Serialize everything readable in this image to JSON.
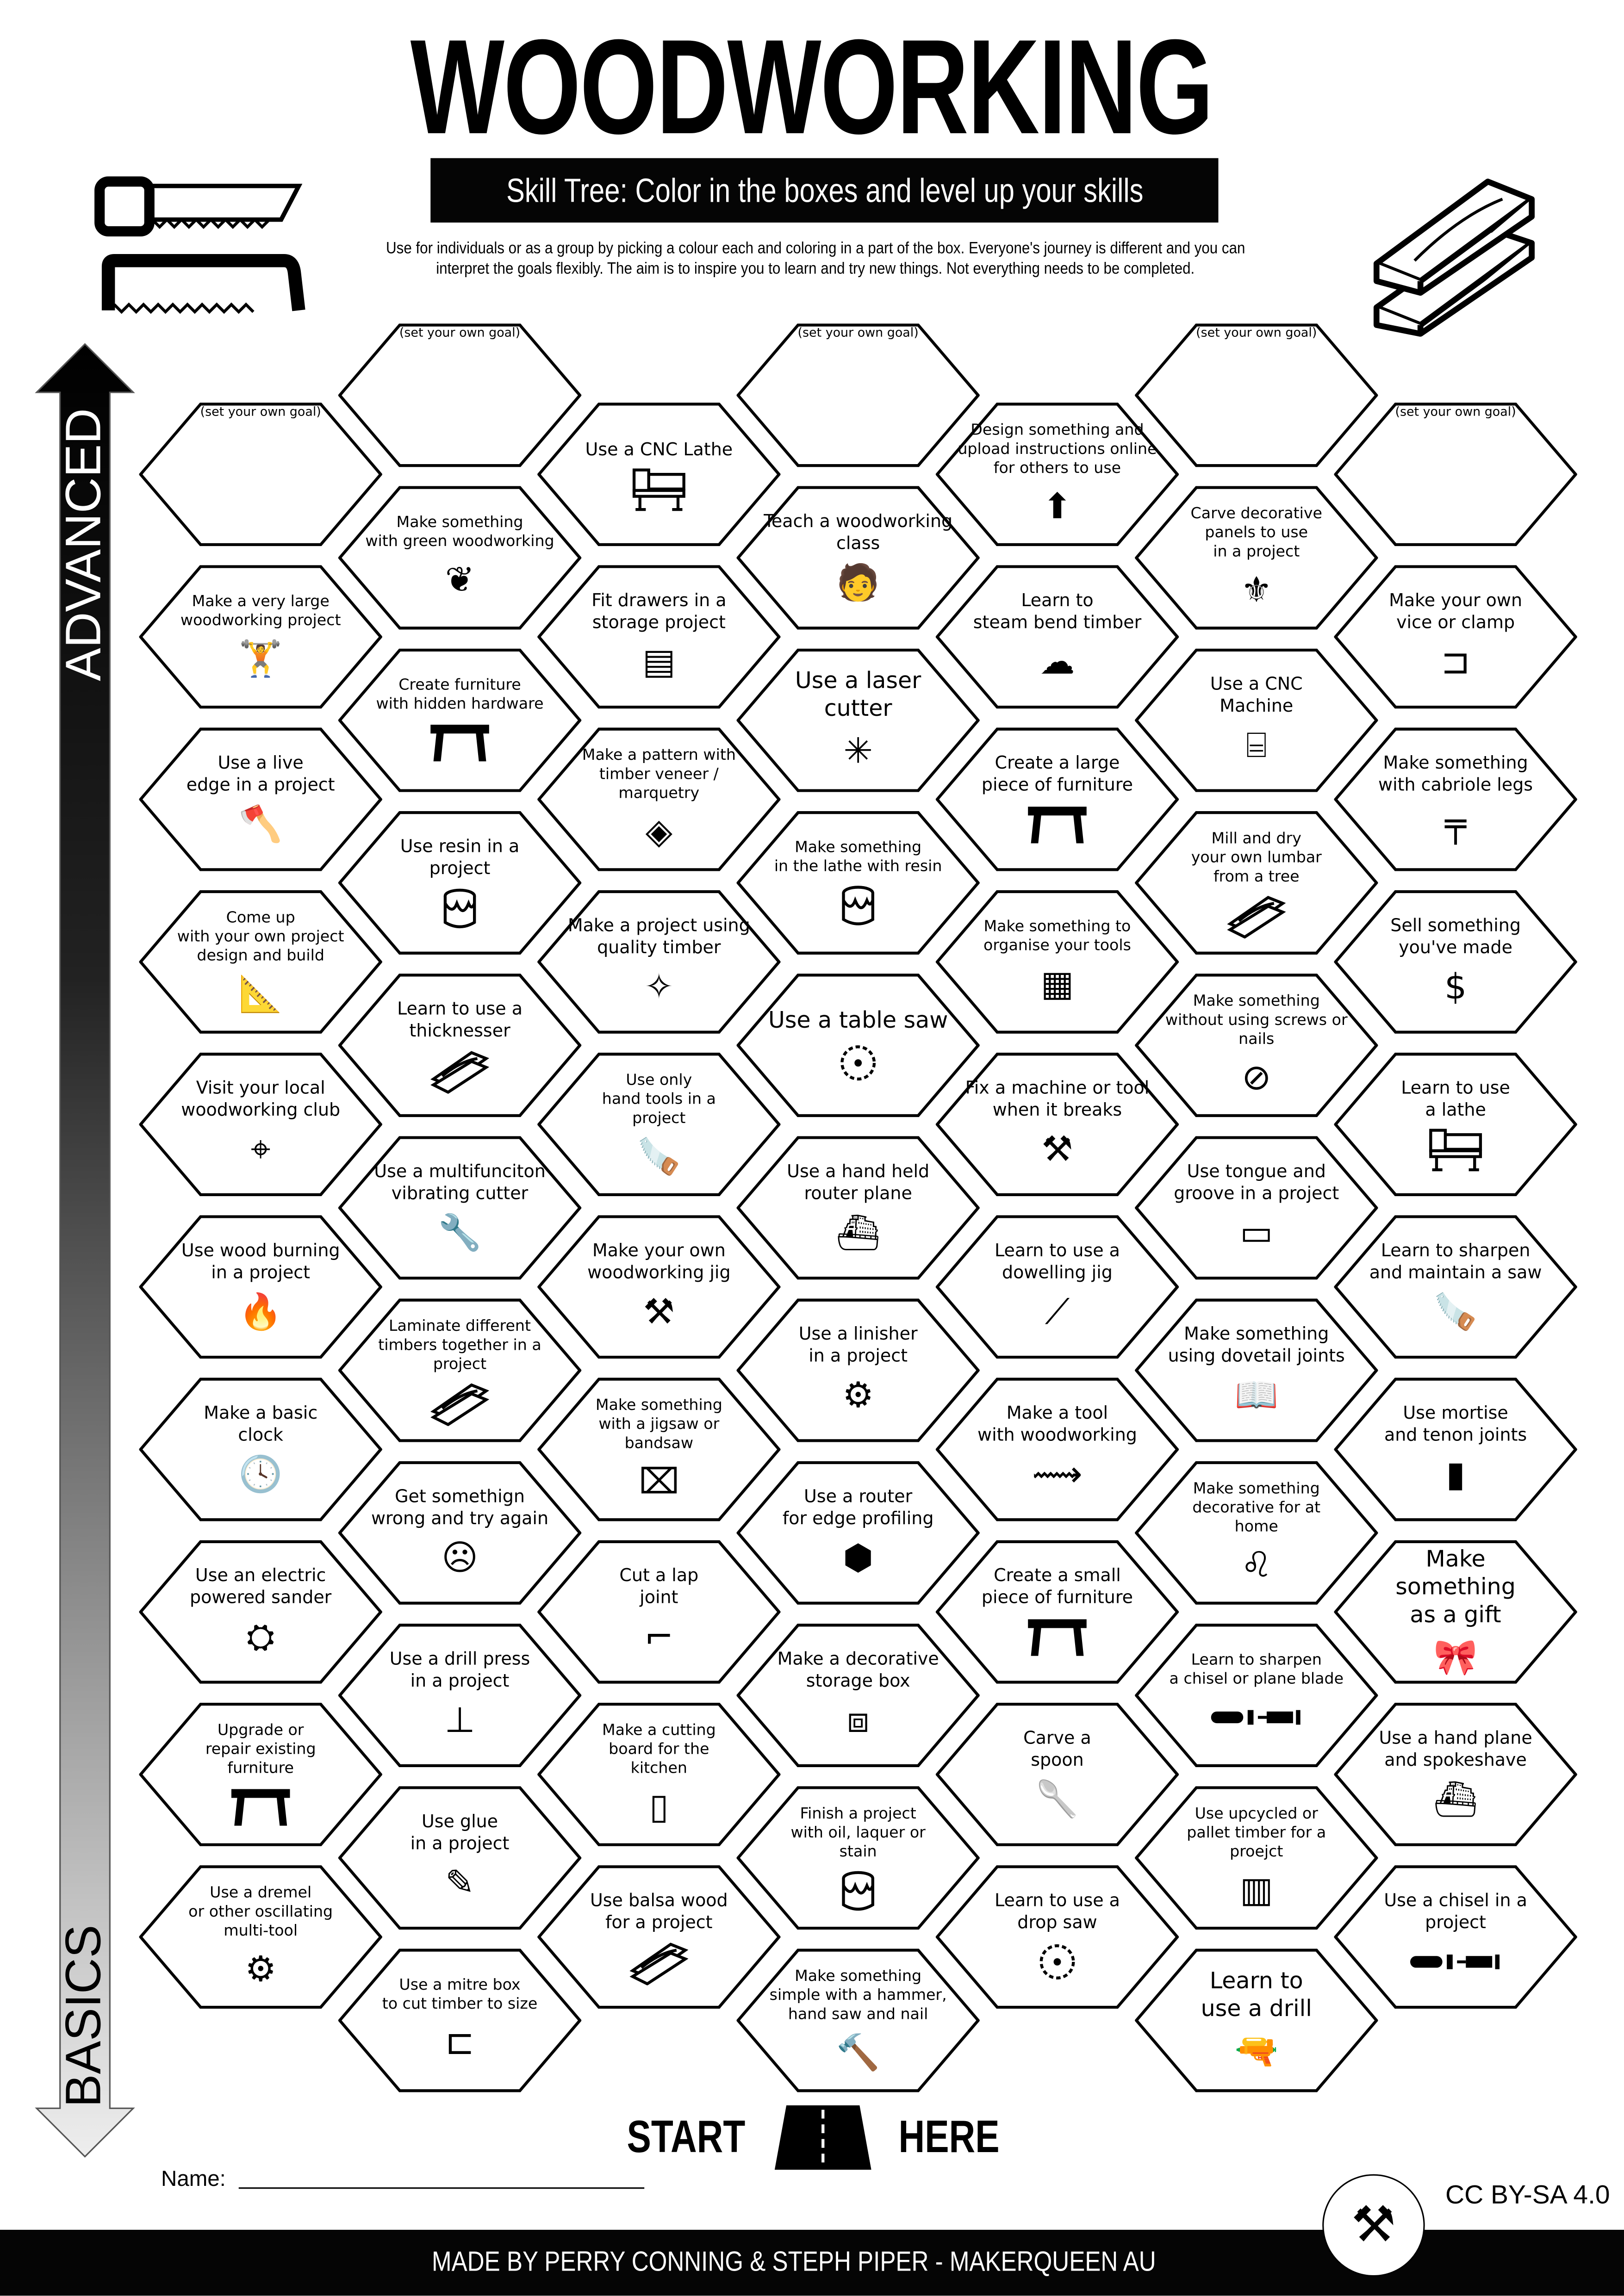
{
  "header": {
    "title": "WOODWORKING",
    "subtitle": "Skill Tree:  Color in the boxes and level up your skills",
    "description_lines": [
      "Use for individuals or as a group by picking a colour each and coloring in a part of the box.  Everyone's journey is different and you can",
      "interpret the goals flexibly.  The aim is to inspire you to learn and try new things. Not everything needs to be completed."
    ]
  },
  "axis": {
    "top_label": "ADVANCED",
    "bottom_label": "BASICS"
  },
  "skills": {
    "columns": [
      {
        "items": [
          {
            "text": "(set your own goal)",
            "goal": true,
            "icon": ""
          },
          {
            "text": "Make a very large\nwoodworking project",
            "icon": "person-carrying-load"
          },
          {
            "text": "Use a live\nedge in a project",
            "icon": "axe-in-log"
          },
          {
            "text": "Come up\nwith your own project\ndesign and build",
            "icon": "blueprint"
          },
          {
            "text": "Visit your local\nwoodworking club",
            "icon": "location-pin"
          },
          {
            "text": "Use wood burning\nin a project",
            "icon": "flame"
          },
          {
            "text": "Make a basic\nclock",
            "icon": "clock"
          },
          {
            "text": "Use an electric\npowered sander",
            "icon": "sander"
          },
          {
            "text": "Upgrade or\nrepair existing\nfurniture",
            "icon": "table"
          },
          {
            "text": "Use a dremel\nor other oscillating\nmulti-tool",
            "icon": "dremel"
          }
        ]
      },
      {
        "items": [
          {
            "text": "(set your own goal)",
            "goal": true,
            "icon": ""
          },
          {
            "text": "Make something\nwith green woodworking",
            "icon": "sprout"
          },
          {
            "text": "Create furniture\nwith hidden hardware",
            "icon": "table"
          },
          {
            "text": "Use resin in a\nproject",
            "icon": "paint-can"
          },
          {
            "text": "Learn to use a\nthicknesser",
            "icon": "timber-planks"
          },
          {
            "text": "Use a multifunciton\nvibrating cutter",
            "icon": "multitool"
          },
          {
            "text": "Laminate different\ntimbers together in a\nproject",
            "icon": "timber-planks"
          },
          {
            "text": "Get somethign\nwrong and try again",
            "icon": "sad-frame"
          },
          {
            "text": "Use a drill press\nin a project",
            "icon": "drill-press"
          },
          {
            "text": "Use glue\nin a project",
            "icon": "glue"
          },
          {
            "text": "Use a mitre box\nto cut timber to size",
            "icon": "mitre-box"
          }
        ]
      },
      {
        "items": [
          {
            "text": "Use a CNC Lathe",
            "icon": "lathe"
          },
          {
            "text": "Fit drawers in a\nstorage project",
            "icon": "cabinet"
          },
          {
            "text": "Make a pattern with\ntimber veneer / marquetry",
            "icon": "marquetry"
          },
          {
            "text": "Make a project using\nquality timber",
            "icon": "sparkle-timber"
          },
          {
            "text": "Use only\nhand tools in a\nproject",
            "icon": "hand-saw"
          },
          {
            "text": "Make your own\nwoodworking jig",
            "icon": "wrench-screwdriver"
          },
          {
            "text": "Make something\nwith a jigsaw or\nbandsaw",
            "icon": "jigsaw"
          },
          {
            "text": "Cut a lap\njoint",
            "icon": "lap-joint"
          },
          {
            "text": "Make a cutting\nboard for the\nkitchen",
            "icon": "cutting-board"
          },
          {
            "text": "Use balsa wood\nfor a project",
            "icon": "timber-planks"
          }
        ]
      },
      {
        "items": [
          {
            "text": "(set your own goal)",
            "goal": true,
            "icon": ""
          },
          {
            "text": "Teach a woodworking\nclass",
            "icon": "teacher"
          },
          {
            "text": "Use a laser\ncutter",
            "icon": "laser-burst",
            "large": true
          },
          {
            "text": "Make something\nin the lathe with resin",
            "icon": "paint-can"
          },
          {
            "text": "Use a table saw",
            "icon": "saw-blade",
            "large": true
          },
          {
            "text": "Use a hand held\nrouter plane",
            "icon": "hand-plane"
          },
          {
            "text": "Use a linisher\nin a project",
            "icon": "linisher"
          },
          {
            "text": "Use a router\nfor edge profiling",
            "icon": "router"
          },
          {
            "text": "Make a decorative\nstorage box",
            "icon": "chest"
          },
          {
            "text": "Finish a project\nwith oil,  laquer or\nstain",
            "icon": "paint-can"
          },
          {
            "text": "Make something\nsimple with a hammer,\nhand saw and nail",
            "icon": "hammer"
          }
        ]
      },
      {
        "items": [
          {
            "text": "Design something and\nupload instructions online\nfor others to use",
            "icon": "upload-arrow"
          },
          {
            "text": "Learn to\nsteam bend timber",
            "icon": "steam"
          },
          {
            "text": "Create a large\npiece of furniture",
            "icon": "table"
          },
          {
            "text": "Make something to\norganise your tools",
            "icon": "pegboard"
          },
          {
            "text": "Fix a machine or tool\nwhen it breaks",
            "icon": "wrench-screwdriver"
          },
          {
            "text": "Learn to use a\ndowelling jig",
            "icon": "dowel"
          },
          {
            "text": "Make a tool\nwith woodworking",
            "icon": "wooden-saw"
          },
          {
            "text": "Create a small\npiece of furniture",
            "icon": "table"
          },
          {
            "text": "Carve a\nspoon",
            "icon": "spoon"
          },
          {
            "text": "Learn to use a\ndrop saw",
            "icon": "saw-blade"
          }
        ]
      },
      {
        "items": [
          {
            "text": "(set your own goal)",
            "goal": true,
            "icon": ""
          },
          {
            "text": "Carve decorative\npanels to use\nin a project",
            "icon": "fleur-de-lis"
          },
          {
            "text": "Use a CNC\nMachine",
            "icon": "cnc-machine"
          },
          {
            "text": "Mill and dry\nyour own lumbar\nfrom a tree",
            "icon": "timber-planks"
          },
          {
            "text": "Make something\nwithout using screws or\nnails",
            "icon": "no-nails"
          },
          {
            "text": "Use tongue and\ngroove in a project",
            "icon": "tongue-groove"
          },
          {
            "text": "Make something\nusing dovetail joints",
            "icon": "dovetail"
          },
          {
            "text": "Make something\ndecorative for at\nhome",
            "icon": "lion-statue"
          },
          {
            "text": "Learn to sharpen\na chisel or plane blade",
            "icon": "chisel"
          },
          {
            "text": "Use upcycled or\npallet timber for a\nproejct",
            "icon": "pallet"
          },
          {
            "text": "Learn to\nuse a drill",
            "icon": "drill",
            "large": true
          }
        ]
      },
      {
        "items": [
          {
            "text": "(set your own goal)",
            "goal": true,
            "icon": ""
          },
          {
            "text": "Make your own\nvice or clamp",
            "icon": "clamp"
          },
          {
            "text": "Make something\nwith cabriole legs",
            "icon": "cabriole-table"
          },
          {
            "text": "Sell something\nyou've made",
            "icon": "dollar"
          },
          {
            "text": "Learn to use\na lathe",
            "icon": "lathe"
          },
          {
            "text": "Learn to sharpen\nand maintain a saw",
            "icon": "hand-saw"
          },
          {
            "text": "Use mortise\nand tenon joints",
            "icon": "mortise-tenon"
          },
          {
            "text": "Make\nsomething\nas a gift",
            "icon": "gift-bow",
            "large": true
          },
          {
            "text": "Use a hand plane\nand spokeshave",
            "icon": "hand-plane"
          },
          {
            "text": "Use a chisel in a\nproject",
            "icon": "chisel"
          }
        ]
      }
    ]
  },
  "start": {
    "left": "START",
    "right": "HERE",
    "icon": "road-icon"
  },
  "name_label": "Name:",
  "license": "CC BY-SA 4.0",
  "footer": "MADE BY PERRY CONNING & STEPH PIPER  -  MAKERQUEEN AU",
  "colors": {
    "ink": "#000000",
    "paper": "#ffffff",
    "arrow_gradient_end": "#e8e8e8"
  }
}
